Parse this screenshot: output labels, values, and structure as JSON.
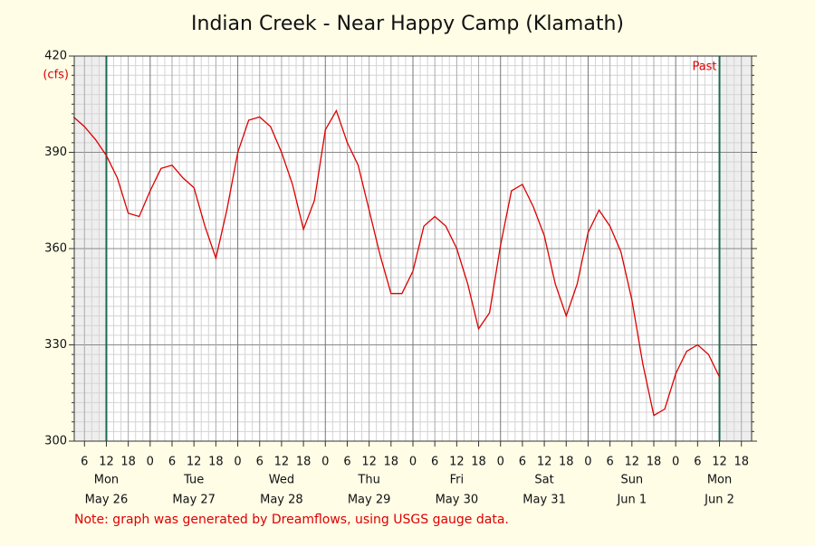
{
  "chart_data": {
    "type": "line",
    "title": "Indian Creek - Near Happy Camp (Klamath)",
    "y_label": "(cfs)",
    "annotation": "Past",
    "note": "Note: graph was generated by Dreamflows, using USGS gauge data.",
    "color": "#dd0000",
    "grid": true,
    "xlim": [
      3.2,
      188.8
    ],
    "ylim": [
      300,
      420
    ],
    "yticks": [
      300,
      330,
      360,
      390,
      420
    ],
    "xticks": [
      6,
      12,
      18,
      {
        "value": 24,
        "label": "0"
      },
      {
        "value": 30,
        "label": "6"
      },
      {
        "value": 36,
        "label": "12"
      },
      {
        "value": 42,
        "label": "18"
      },
      {
        "value": 48,
        "label": "0"
      },
      {
        "value": 54,
        "label": "6"
      },
      {
        "value": 60,
        "label": "12"
      },
      {
        "value": 66,
        "label": "18"
      },
      {
        "value": 72,
        "label": "0"
      },
      {
        "value": 78,
        "label": "6"
      },
      {
        "value": 84,
        "label": "12"
      },
      {
        "value": 90,
        "label": "18"
      },
      {
        "value": 96,
        "label": "0"
      },
      {
        "value": 102,
        "label": "6"
      },
      {
        "value": 108,
        "label": "12"
      },
      {
        "value": 114,
        "label": "18"
      },
      {
        "value": 120,
        "label": "0"
      },
      {
        "value": 126,
        "label": "6"
      },
      {
        "value": 132,
        "label": "12"
      },
      {
        "value": 138,
        "label": "18"
      },
      {
        "value": 144,
        "label": "0"
      },
      {
        "value": 150,
        "label": "6"
      },
      {
        "value": 156,
        "label": "12"
      },
      {
        "value": 162,
        "label": "18"
      },
      {
        "value": 168,
        "label": "0"
      },
      {
        "value": 174,
        "label": "6"
      },
      {
        "value": 180,
        "label": "12"
      },
      {
        "value": 186,
        "label": "18"
      }
    ],
    "day_labels": [
      {
        "value": 12,
        "weekday": "Mon",
        "date": "May 26"
      },
      {
        "value": 36,
        "weekday": "Tue",
        "date": "May 27"
      },
      {
        "value": 60,
        "weekday": "Wed",
        "date": "May 28"
      },
      {
        "value": 84,
        "weekday": "Thu",
        "date": "May 29"
      },
      {
        "value": 108,
        "weekday": "Fri",
        "date": "May 30"
      },
      {
        "value": 132,
        "weekday": "Sat",
        "date": "May 31"
      },
      {
        "value": 156,
        "weekday": "Sun",
        "date": "Jun 1"
      },
      {
        "value": 180,
        "weekday": "Mon",
        "date": "Jun 2"
      }
    ],
    "markers": [
      12,
      180
    ],
    "x": [
      3,
      6,
      9,
      12,
      15,
      18,
      21,
      24,
      27,
      30,
      33,
      36,
      39,
      42,
      45,
      48,
      51,
      54,
      57,
      60,
      63,
      66,
      69,
      72,
      75,
      78,
      81,
      84,
      87,
      90,
      93,
      96,
      99,
      102,
      105,
      108,
      111,
      114,
      117,
      120,
      123,
      126,
      129,
      132,
      135,
      138,
      141,
      144,
      147,
      150,
      153,
      156,
      159,
      162,
      165,
      168,
      171,
      174,
      177,
      180
    ],
    "values": [
      401,
      398,
      394,
      389,
      382,
      371,
      370,
      378,
      385,
      386,
      382,
      379,
      367,
      357,
      372,
      390,
      400,
      401,
      398,
      390,
      380,
      366,
      375,
      397,
      403,
      393,
      386,
      372,
      358,
      346,
      346,
      353,
      367,
      370,
      367,
      360,
      349,
      335,
      340,
      361,
      378,
      380,
      373,
      364,
      349,
      339,
      349,
      365,
      372,
      367,
      359,
      344,
      324,
      308,
      310,
      321,
      328,
      330,
      327,
      320
    ]
  }
}
